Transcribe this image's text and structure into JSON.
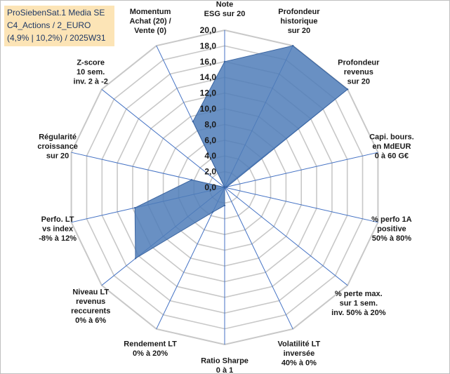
{
  "title_box": {
    "line1": "ProSiebenSat.1 Media SE",
    "line2": "C4_Actions / 2_EURO",
    "line3": "(4,9% | 10,2%) / 2025W31"
  },
  "colors": {
    "fill": "#4f7db8",
    "fill_opacity": "0.85",
    "series_stroke": "#3a64a0",
    "spoke": "#4472c4",
    "grid": "#c8c8c8",
    "title_bg": "#fce4b6"
  },
  "chart_data": {
    "type": "radar",
    "rmin": 0,
    "rmax": 20,
    "tick_step": 2,
    "tick_labels": [
      "0,0",
      "2,0",
      "4,0",
      "6,0",
      "8,0",
      "10,0",
      "12,0",
      "14,0",
      "16,0",
      "18,0",
      "20,0"
    ],
    "axes": [
      {
        "label": [
          "Note",
          "ESG sur 20"
        ],
        "value": 16
      },
      {
        "label": [
          "Profondeur",
          "historique",
          "sur 20"
        ],
        "value": 20
      },
      {
        "label": [
          "Profondeur",
          "revenus",
          "sur 20"
        ],
        "value": 20
      },
      {
        "label": [
          "Capi. bours.",
          "en MdEUR",
          "0 à 60 G€"
        ],
        "value": 0.3
      },
      {
        "label": [
          "% perfo 1A",
          "positive",
          "50% à 80%"
        ],
        "value": 0
      },
      {
        "label": [
          "% perte max.",
          "sur 1 sem.",
          "inv. 50% à 20%"
        ],
        "value": 0
      },
      {
        "label": [
          "Volatilité LT",
          "inversée",
          "40% à 0%"
        ],
        "value": 0
      },
      {
        "label": [
          "Ratio Sharpe",
          "0 à 1"
        ],
        "value": 2.3
      },
      {
        "label": [
          "Rendement LT",
          "0% à 20%"
        ],
        "value": 3.5
      },
      {
        "label": [
          "Niveau LT",
          "revenus",
          "reccurents",
          "0% à 6%"
        ],
        "value": 14.5
      },
      {
        "label": [
          "Perfo. LT",
          "vs index",
          "-8% à 12%"
        ],
        "value": 11.7
      },
      {
        "label": [
          "Régularité",
          "croissance",
          "sur 20"
        ],
        "value": 4.3
      },
      {
        "label": [
          "Z-score",
          "10 sem.",
          "inv. 2 à -2"
        ],
        "value": 0
      },
      {
        "label": [
          "Momentum",
          "Achat (20) /",
          "Vente (0)"
        ],
        "value": 9.3
      }
    ]
  }
}
